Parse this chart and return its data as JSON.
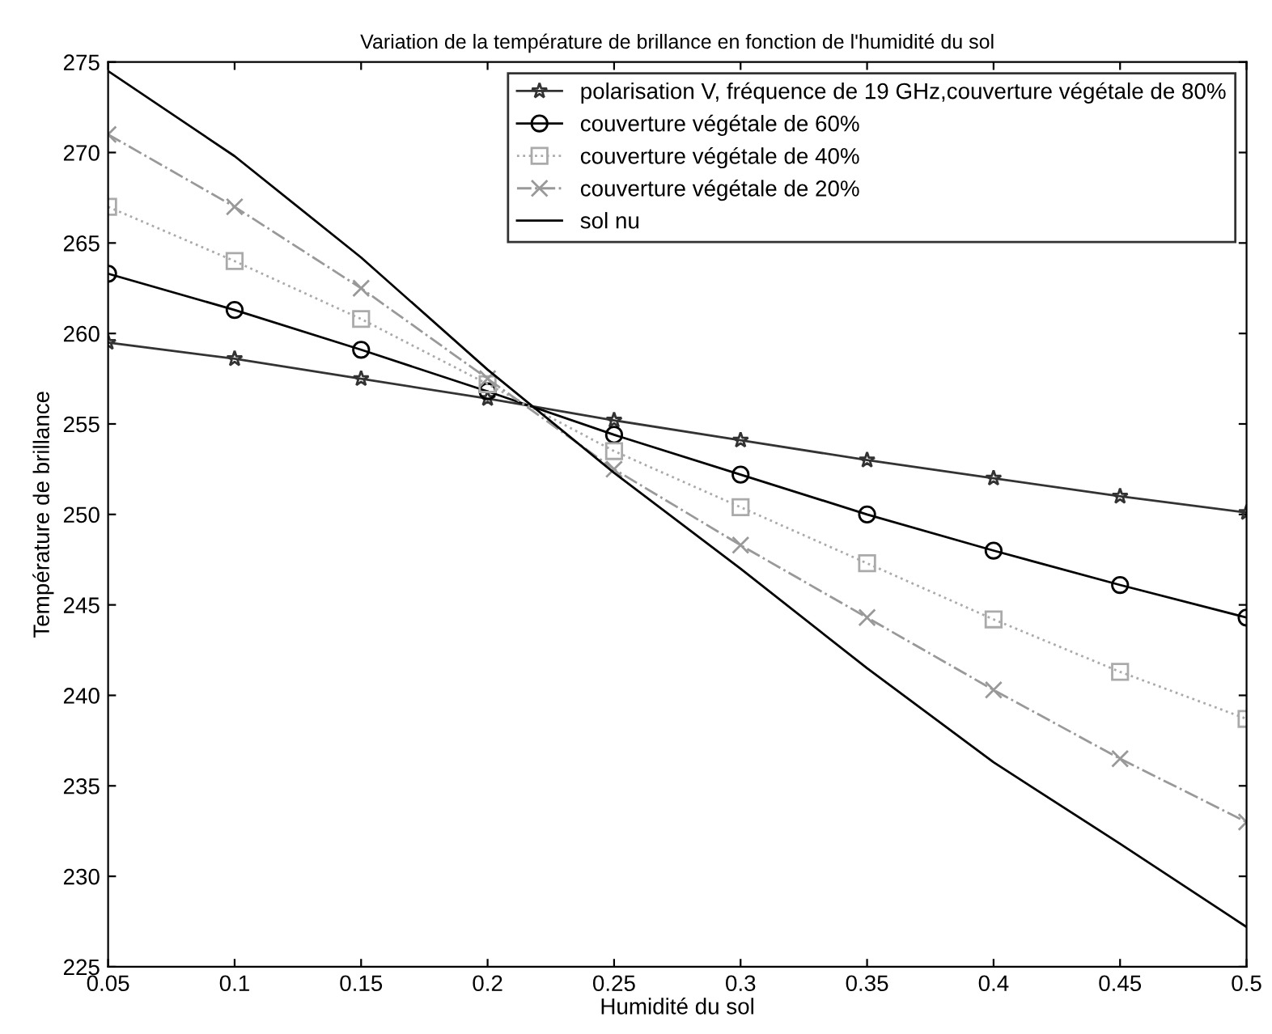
{
  "chart_data": {
    "type": "line",
    "title": "Variation de la température de brillance en fonction de l'humidité du sol",
    "xlabel": "Humidité du sol",
    "ylabel": "Température de brillance",
    "x": [
      0.05,
      0.1,
      0.15,
      0.2,
      0.25,
      0.3,
      0.35,
      0.4,
      0.45,
      0.5
    ],
    "series": [
      {
        "name": "polarisation V, fréquence de 19 GHz,couverture végétale de 80%",
        "color": "#333333",
        "marker": "star",
        "line_style": "solid",
        "values": [
          259.5,
          258.6,
          257.5,
          256.4,
          255.2,
          254.1,
          253.0,
          252.0,
          251.0,
          250.1
        ]
      },
      {
        "name": "couverture végétale de 60%",
        "color": "#000000",
        "marker": "circle",
        "line_style": "solid",
        "values": [
          263.3,
          261.3,
          259.1,
          256.8,
          254.4,
          252.2,
          250.0,
          248.0,
          246.1,
          244.3
        ]
      },
      {
        "name": "couverture végétale de 40%",
        "color": "#aaaaaa",
        "marker": "square",
        "line_style": "dotted",
        "values": [
          267.0,
          264.0,
          260.8,
          257.2,
          253.5,
          250.4,
          247.3,
          244.2,
          241.3,
          238.7
        ]
      },
      {
        "name": "couverture végétale de 20%",
        "color": "#999999",
        "marker": "cross",
        "line_style": "dashed",
        "values": [
          271.0,
          267.0,
          262.5,
          257.5,
          252.5,
          248.3,
          244.3,
          240.3,
          236.5,
          233.0
        ]
      },
      {
        "name": "sol nu",
        "color": "#000000",
        "marker": "none",
        "line_style": "solid",
        "values": [
          274.5,
          269.8,
          264.2,
          258.0,
          252.3,
          247.0,
          241.5,
          236.3,
          231.8,
          227.2
        ]
      }
    ],
    "xlim": [
      0.05,
      0.5
    ],
    "ylim": [
      225,
      275
    ],
    "xticks": [
      0.05,
      0.1,
      0.15,
      0.2,
      0.25,
      0.3,
      0.35,
      0.4,
      0.45,
      0.5
    ],
    "yticks": [
      225,
      230,
      235,
      240,
      245,
      250,
      255,
      260,
      265,
      270,
      275
    ],
    "grid": false,
    "legend": "top right"
  }
}
